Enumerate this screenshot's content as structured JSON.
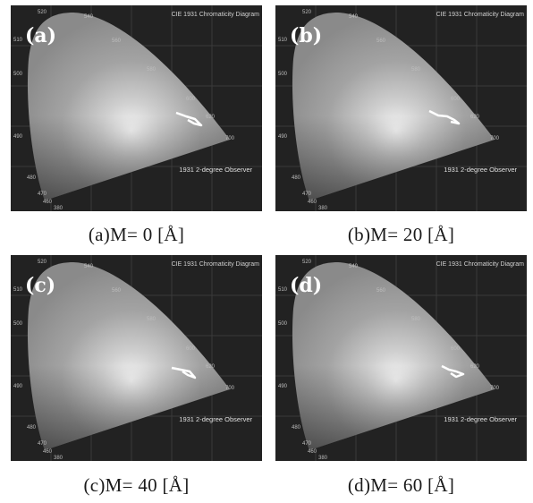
{
  "panels": [
    {
      "letter": "(a)",
      "title": "CIE 1931 Chromaticity Diagram",
      "observer": "1931 2-degree Observer",
      "caption": "(a)M= 0 [Å]",
      "wavelengths": [
        "520",
        "540",
        "510",
        "560",
        "500",
        "580",
        "490",
        "600",
        "620",
        "700",
        "480",
        "470",
        "460",
        "380"
      ]
    },
    {
      "letter": "(b)",
      "title": "CIE 1931 Chromaticity Diagram",
      "observer": "1931 2-degree Observer",
      "caption": "(b)M= 20 [Å]",
      "wavelengths": [
        "520",
        "540",
        "510",
        "560",
        "500",
        "580",
        "490",
        "600",
        "620",
        "700",
        "480",
        "470",
        "460",
        "380"
      ]
    },
    {
      "letter": "(c)",
      "title": "CIE 1931 Chromaticity Diagram",
      "observer": "1931 2-degree Observer",
      "caption": "(c)M= 40 [Å]",
      "wavelengths": [
        "520",
        "540",
        "510",
        "560",
        "500",
        "580",
        "490",
        "600",
        "620",
        "700",
        "480",
        "470",
        "460",
        "380"
      ]
    },
    {
      "letter": "(d)",
      "title": "CIE 1931 Chromaticity Diagram",
      "observer": "1931 2-degree Observer",
      "caption": "(d)M= 60 [Å]",
      "wavelengths": [
        "520",
        "540",
        "510",
        "560",
        "500",
        "580",
        "490",
        "600",
        "620",
        "700",
        "480",
        "470",
        "460",
        "380"
      ]
    }
  ]
}
